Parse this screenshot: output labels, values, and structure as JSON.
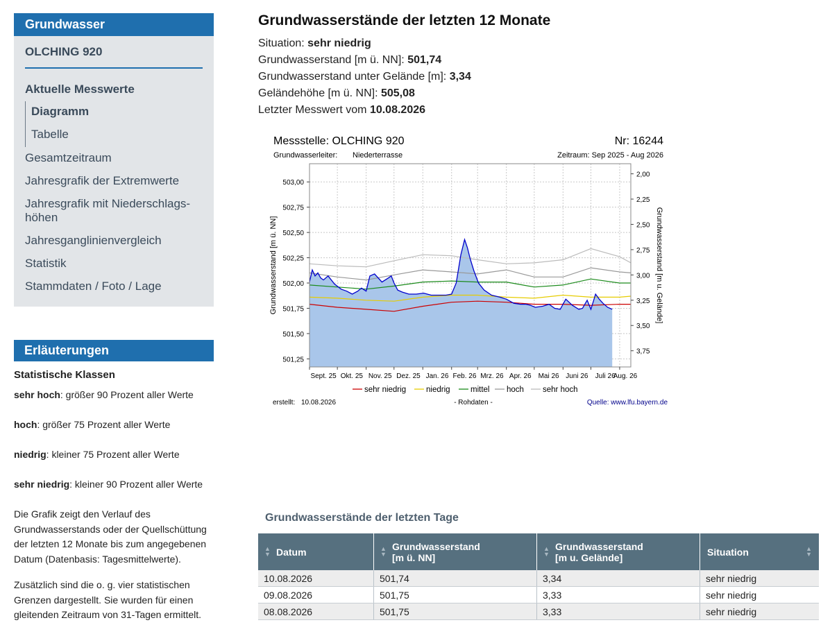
{
  "sidebar": {
    "header": "Grundwasser",
    "station": "OLCHING 920",
    "section": "Aktuelle Messwerte",
    "subitems": [
      "Diagramm",
      "Tabelle"
    ],
    "items": [
      "Gesamtzeitraum",
      "Jahresgrafik der Extremwerte",
      "Jahresgrafik mit Niederschlags-höhen",
      "Jahresganglinienvergleich",
      "Statistik",
      "Stammdaten / Foto / Lage"
    ]
  },
  "explanations": {
    "header": "Erläuterungen",
    "title": "Statistische Klassen",
    "classes": [
      {
        "term": "sehr hoch",
        "desc": ": größer 90 Prozent aller Werte"
      },
      {
        "term": "hoch",
        "desc": ": größer 75 Prozent aller Werte"
      },
      {
        "term": "niedrig",
        "desc": ": kleiner 75 Prozent aller Werte"
      },
      {
        "term": "sehr niedrig",
        "desc": ": kleiner 90 Prozent aller Werte"
      }
    ],
    "para1": "Die Grafik zeigt den Verlauf des Grundwasserstands oder der Quellschüttung der letzten 12 Monate bis zum angegebenen Datum (Datenbasis: Tagesmittelwerte).",
    "para2": "Zusätzlich sind die o. g. vier statistischen Grenzen dargestellt. Sie wurden für einen gleitenden Zeitraum von 31-Tagen ermittelt."
  },
  "main": {
    "title": "Grundwasserstände der letzten 12 Monate",
    "info": [
      {
        "label": "Situation: ",
        "value": "sehr niedrig"
      },
      {
        "label": "Grundwasserstand [m ü. NN]: ",
        "value": "501,74"
      },
      {
        "label": "Grundwasserstand unter Gelände [m]: ",
        "value": "3,34"
      },
      {
        "label": "Geländehöhe [m ü. NN]: ",
        "value": "505,08"
      },
      {
        "label": "Letzter Messwert vom ",
        "value": "10.08.2026"
      }
    ]
  },
  "chart_data": {
    "type": "area",
    "title": "Messstelle: OLCHING 920",
    "number": "Nr: 16244",
    "aquifer_label": "Grundwasserleiter:",
    "aquifer": "Niederterrasse",
    "period": "Zeitraum: Sep 2025 - Aug 2026",
    "ylabel": "Grundwasserstand [m ü. NN]",
    "ylabel_right": "Grundwasserstand [m u. Gelände]",
    "ylim": [
      501.17,
      503.18
    ],
    "yticks": [
      "503,00",
      "502,75",
      "502,50",
      "502,25",
      "502,00",
      "501,75",
      "501,50",
      "501,25"
    ],
    "ytick_values": [
      503.0,
      502.75,
      502.5,
      502.25,
      502.0,
      501.75,
      501.5,
      501.25
    ],
    "yticks_right": [
      "2,00",
      "2,25",
      "2,50",
      "2,75",
      "3,00",
      "3,25",
      "3,50",
      "3,75"
    ],
    "yticks_right_values": [
      2.0,
      2.25,
      2.5,
      2.75,
      3.0,
      3.25,
      3.5,
      3.75
    ],
    "ground_level": 505.08,
    "xlim": [
      0,
      346
    ],
    "month_starts": [
      0,
      30,
      61,
      91,
      122,
      153,
      181,
      212,
      242,
      273,
      303,
      334
    ],
    "xticks": [
      "Sept. 25",
      "Okt. 25",
      "Nov. 25",
      "Dez. 25",
      "Jan. 26",
      "Feb. 26",
      "Mrz. 26",
      "Apr. 26",
      "Mai 26",
      "Juni 26",
      "Juli 26",
      "Aug. 26"
    ],
    "grid": true,
    "legend": "bottom",
    "series": [
      {
        "name": "sehr niedrig",
        "color": "#cc0000",
        "x": [
          0,
          30,
          61,
          91,
          122,
          153,
          181,
          212,
          242,
          273,
          303,
          334,
          346
        ],
        "y": [
          501.79,
          501.76,
          501.74,
          501.72,
          501.77,
          501.81,
          501.82,
          501.81,
          501.79,
          501.79,
          501.78,
          501.79,
          501.79
        ]
      },
      {
        "name": "niedrig",
        "color": "#e6cc00",
        "x": [
          0,
          30,
          61,
          91,
          122,
          153,
          181,
          212,
          242,
          273,
          303,
          334,
          346
        ],
        "y": [
          501.86,
          501.85,
          501.83,
          501.82,
          501.86,
          501.88,
          501.88,
          501.86,
          501.85,
          501.88,
          501.86,
          501.86,
          501.87
        ]
      },
      {
        "name": "mittel",
        "color": "#1a8a1a",
        "x": [
          0,
          30,
          61,
          91,
          122,
          153,
          181,
          212,
          242,
          273,
          303,
          334,
          346
        ],
        "y": [
          501.98,
          501.96,
          501.94,
          501.97,
          502.01,
          502.02,
          502.01,
          502.01,
          501.96,
          501.98,
          502.04,
          502.0,
          502.0
        ]
      },
      {
        "name": "hoch",
        "color": "#999999",
        "x": [
          0,
          30,
          61,
          91,
          122,
          153,
          181,
          212,
          242,
          273,
          303,
          334,
          346
        ],
        "y": [
          502.1,
          502.06,
          502.03,
          502.08,
          502.13,
          502.11,
          502.09,
          502.13,
          502.06,
          502.06,
          502.15,
          502.11,
          502.1
        ]
      },
      {
        "name": "sehr hoch",
        "color": "#bbbbbb",
        "x": [
          0,
          30,
          61,
          91,
          122,
          153,
          181,
          212,
          242,
          273,
          303,
          334,
          346
        ],
        "y": [
          502.19,
          502.17,
          502.16,
          502.22,
          502.28,
          502.27,
          502.23,
          502.19,
          502.2,
          502.23,
          502.34,
          502.26,
          502.2
        ]
      },
      {
        "name": "Grundwasserstand",
        "color": "#0000cc",
        "fill": "#a9c6ea",
        "x": [
          0,
          3,
          6,
          9,
          12,
          15,
          20,
          27,
          34,
          40,
          46,
          52,
          56,
          61,
          65,
          70,
          78,
          85,
          88,
          91,
          95,
          100,
          107,
          115,
          123,
          131,
          139,
          147,
          153,
          158,
          163,
          167,
          170,
          173,
          177,
          182,
          188,
          196,
          205,
          212,
          220,
          227,
          233,
          238,
          243,
          251,
          258,
          264,
          270,
          276,
          283,
          290,
          294,
          299,
          303,
          308,
          312,
          316,
          321,
          326
        ],
        "y": [
          502.01,
          502.13,
          502.07,
          502.1,
          502.05,
          502.03,
          502.07,
          501.99,
          501.94,
          501.92,
          501.89,
          501.92,
          501.95,
          501.92,
          502.07,
          502.09,
          502.01,
          502.05,
          502.07,
          502.0,
          501.93,
          501.91,
          501.89,
          501.89,
          501.9,
          501.88,
          501.88,
          501.88,
          501.89,
          502.0,
          502.28,
          502.43,
          502.35,
          502.24,
          502.12,
          502.0,
          501.93,
          501.88,
          501.86,
          501.84,
          501.8,
          501.79,
          501.79,
          501.78,
          501.76,
          501.77,
          501.79,
          501.75,
          501.74,
          501.84,
          501.78,
          501.74,
          501.75,
          501.83,
          501.74,
          501.89,
          501.84,
          501.8,
          501.76,
          501.74
        ]
      }
    ],
    "created_label": "erstellt:",
    "created_date": "10.08.2026",
    "data_note": "- Rohdaten -",
    "source": "Quelle: www.lfu.bayern.de"
  },
  "table": {
    "title": "Grundwasserstände der letzten Tage",
    "headers": [
      {
        "line1": "Datum",
        "line2": ""
      },
      {
        "line1": "Grundwasserstand",
        "line2": "[m ü. NN]"
      },
      {
        "line1": "Grundwasserstand",
        "line2": "[m u. Gelände]"
      },
      {
        "line1": "Situation",
        "line2": ""
      }
    ],
    "rows": [
      [
        "10.08.2026",
        "501,74",
        "3,34",
        "sehr niedrig"
      ],
      [
        "09.08.2026",
        "501,75",
        "3,33",
        "sehr niedrig"
      ],
      [
        "08.08.2026",
        "501,75",
        "3,33",
        "sehr niedrig"
      ]
    ]
  },
  "colors": {
    "accent": "#1f6fae",
    "table_header": "#56707f",
    "sidebar_bg": "#e2e5e8"
  }
}
